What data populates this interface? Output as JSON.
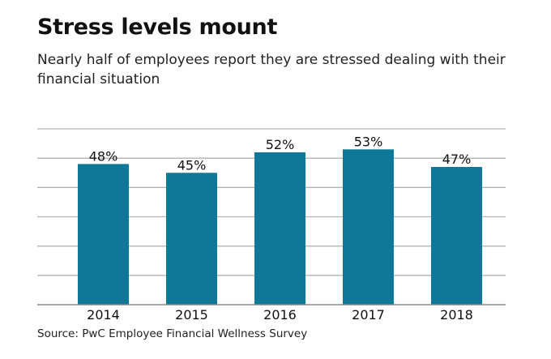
{
  "title": "Stress levels mount",
  "subtitle": "Nearly half of employees report they are stressed dealing with their financial situation",
  "source": "Source: PwC Employee Financial Wellness Survey",
  "colors": {
    "bar": "#0e7896",
    "grid": "#b3b3b3",
    "axis": "#888888"
  },
  "chart_data": {
    "type": "bar",
    "title": "Stress levels mount",
    "xlabel": "",
    "ylabel": "",
    "categories": [
      "2014",
      "2015",
      "2016",
      "2017",
      "2018"
    ],
    "values": [
      48,
      45,
      52,
      53,
      47
    ],
    "labels": [
      "48%",
      "45%",
      "52%",
      "53%",
      "47%"
    ],
    "ylim": [
      0,
      60
    ],
    "grid_step": 10,
    "grid": true
  }
}
